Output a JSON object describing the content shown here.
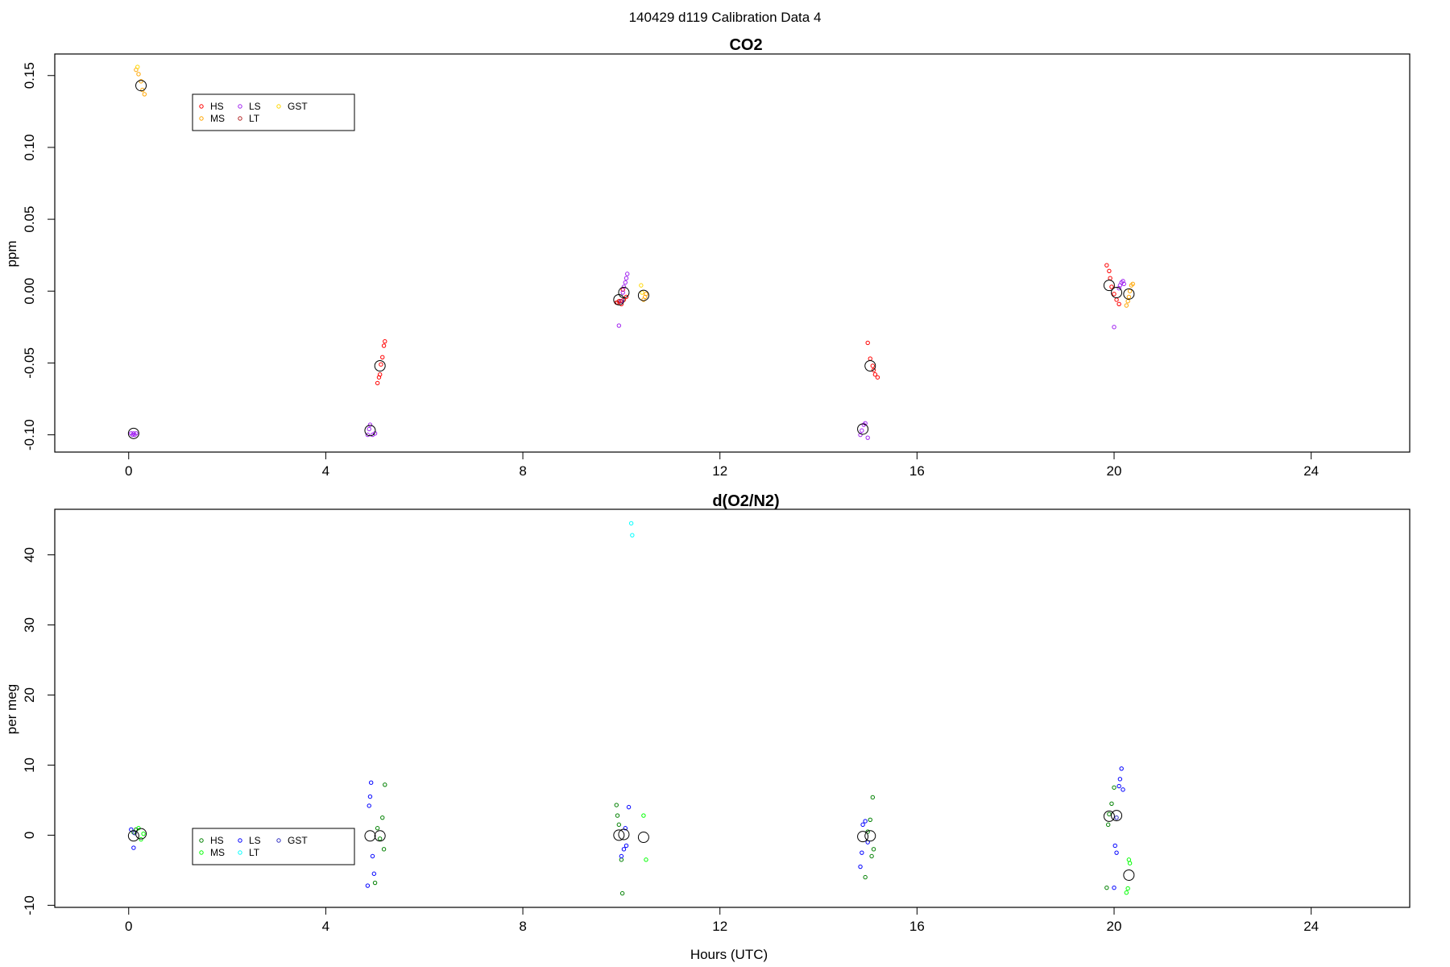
{
  "figure": {
    "title": "140429   d119   Calibration Data 4",
    "xlabel": "Hours (UTC)"
  },
  "chart_data": [
    {
      "type": "scatter",
      "title": "CO2",
      "ylabel": "ppm",
      "xlim": [
        -1.5,
        26
      ],
      "ylim": [
        -0.112,
        0.165
      ],
      "xticks": [
        0,
        4,
        8,
        12,
        16,
        20,
        24
      ],
      "yticks": [
        -0.1,
        -0.05,
        0.0,
        0.05,
        0.1,
        0.15
      ],
      "ytick_labels": [
        "-0.10",
        "-0.05",
        "0.00",
        "0.05",
        "0.10",
        "0.15"
      ],
      "legend": {
        "position": "top-left",
        "entries": [
          {
            "name": "HS",
            "color": "#ff0000"
          },
          {
            "name": "MS",
            "color": "#ffa500"
          },
          {
            "name": "LS",
            "color": "#a020f0"
          },
          {
            "name": "LT",
            "color": "#b22222"
          },
          {
            "name": "GST",
            "color": "#ffd700"
          }
        ]
      },
      "series": [
        {
          "name": "HS",
          "color": "#ff0000",
          "points": [
            [
              5.05,
              -0.064
            ],
            [
              5.1,
              -0.058
            ],
            [
              5.12,
              -0.051
            ],
            [
              5.15,
              -0.046
            ],
            [
              5.18,
              -0.038
            ],
            [
              5.2,
              -0.035
            ],
            [
              5.08,
              -0.06
            ],
            [
              9.9,
              -0.008
            ],
            [
              9.95,
              -0.007
            ],
            [
              10.0,
              -0.009
            ],
            [
              10.05,
              -0.006
            ],
            [
              10.1,
              -0.004
            ],
            [
              10.03,
              0.001
            ],
            [
              15.0,
              -0.036
            ],
            [
              15.05,
              -0.047
            ],
            [
              15.1,
              -0.052
            ],
            [
              15.15,
              -0.058
            ],
            [
              15.2,
              -0.06
            ],
            [
              15.12,
              -0.055
            ],
            [
              19.85,
              0.018
            ],
            [
              19.9,
              0.014
            ],
            [
              19.92,
              0.009
            ],
            [
              19.95,
              0.003
            ],
            [
              20.0,
              -0.002
            ],
            [
              20.05,
              -0.006
            ],
            [
              20.1,
              -0.009
            ]
          ]
        },
        {
          "name": "MS",
          "color": "#ffa500",
          "points": [
            [
              0.15,
              0.154
            ],
            [
              0.2,
              0.151
            ],
            [
              0.25,
              0.146
            ],
            [
              0.28,
              0.14
            ],
            [
              0.32,
              0.137
            ],
            [
              10.45,
              -0.006
            ],
            [
              10.48,
              -0.004
            ],
            [
              10.5,
              -0.002
            ],
            [
              20.25,
              -0.01
            ],
            [
              20.28,
              -0.007
            ],
            [
              20.3,
              -0.004
            ],
            [
              20.32,
              0.0
            ],
            [
              20.35,
              0.004
            ],
            [
              20.38,
              0.005
            ]
          ]
        },
        {
          "name": "LS",
          "color": "#a020f0",
          "points": [
            [
              0.05,
              -0.099
            ],
            [
              0.08,
              -0.1
            ],
            [
              0.1,
              -0.099
            ],
            [
              0.12,
              -0.1
            ],
            [
              0.15,
              -0.099
            ],
            [
              4.85,
              -0.1
            ],
            [
              4.88,
              -0.096
            ],
            [
              4.9,
              -0.093
            ],
            [
              4.95,
              -0.1
            ],
            [
              5.0,
              -0.099
            ],
            [
              9.95,
              -0.024
            ],
            [
              10.0,
              -0.007
            ],
            [
              10.03,
              -0.001
            ],
            [
              10.05,
              0.003
            ],
            [
              10.08,
              0.006
            ],
            [
              10.1,
              0.009
            ],
            [
              10.12,
              0.012
            ],
            [
              14.85,
              -0.1
            ],
            [
              14.88,
              -0.097
            ],
            [
              14.92,
              -0.093
            ],
            [
              14.95,
              -0.092
            ],
            [
              15.0,
              -0.102
            ],
            [
              20.0,
              -0.025
            ],
            [
              20.1,
              0.002
            ],
            [
              20.12,
              0.004
            ],
            [
              20.15,
              0.006
            ],
            [
              20.18,
              0.007
            ],
            [
              20.2,
              0.005
            ]
          ]
        },
        {
          "name": "LT",
          "color": "#b22222",
          "points": [
            [
              9.92,
              -0.008
            ],
            [
              9.98,
              -0.007
            ]
          ]
        },
        {
          "name": "GST",
          "color": "#ffd700",
          "points": [
            [
              0.18,
              0.156
            ],
            [
              10.4,
              0.004
            ],
            [
              10.42,
              -0.001
            ]
          ]
        }
      ],
      "means": [
        [
          0.1,
          -0.099
        ],
        [
          0.25,
          0.143
        ],
        [
          4.9,
          -0.097
        ],
        [
          5.1,
          -0.052
        ],
        [
          9.95,
          -0.006
        ],
        [
          10.05,
          -0.001
        ],
        [
          10.45,
          -0.003
        ],
        [
          14.9,
          -0.096
        ],
        [
          15.05,
          -0.052
        ],
        [
          19.9,
          0.004
        ],
        [
          20.05,
          -0.001
        ],
        [
          20.3,
          -0.002
        ]
      ]
    },
    {
      "type": "scatter",
      "title": "d(O2/N2)",
      "ylabel": "per meg",
      "xlim": [
        -1.5,
        26
      ],
      "ylim": [
        -10.3,
        46.5
      ],
      "xticks": [
        0,
        4,
        8,
        12,
        16,
        20,
        24
      ],
      "yticks": [
        -10,
        0,
        10,
        20,
        30,
        40
      ],
      "ytick_labels": [
        "-10",
        "0",
        "10",
        "20",
        "30",
        "40"
      ],
      "legend": {
        "position": "bottom-left",
        "entries": [
          {
            "name": "HS",
            "color": "#008000"
          },
          {
            "name": "MS",
            "color": "#00ff00"
          },
          {
            "name": "LS",
            "color": "#0000ff"
          },
          {
            "name": "LT",
            "color": "#00ffff"
          },
          {
            "name": "GST",
            "color": "#3030c0"
          }
        ]
      },
      "series": [
        {
          "name": "HS",
          "color": "#008000",
          "points": [
            [
              0.1,
              0.4
            ],
            [
              0.15,
              0.8
            ],
            [
              5.05,
              1.0
            ],
            [
              5.1,
              -0.5
            ],
            [
              5.15,
              2.5
            ],
            [
              5.2,
              7.2
            ],
            [
              5.18,
              -2.0
            ],
            [
              5.0,
              -6.8
            ],
            [
              9.9,
              4.3
            ],
            [
              9.92,
              2.8
            ],
            [
              9.95,
              1.5
            ],
            [
              10.0,
              -3.5
            ],
            [
              10.02,
              -8.3
            ],
            [
              14.95,
              -6.0
            ],
            [
              15.0,
              0.5
            ],
            [
              15.05,
              2.2
            ],
            [
              15.1,
              5.4
            ],
            [
              15.12,
              -2.0
            ],
            [
              15.08,
              -3.0
            ],
            [
              19.85,
              -7.5
            ],
            [
              19.88,
              1.5
            ],
            [
              19.9,
              3.0
            ],
            [
              19.95,
              4.5
            ],
            [
              20.0,
              6.8
            ]
          ]
        },
        {
          "name": "MS",
          "color": "#00ff00",
          "points": [
            [
              0.2,
              1.0
            ],
            [
              0.25,
              -0.6
            ],
            [
              0.3,
              0.2
            ],
            [
              10.45,
              2.8
            ],
            [
              10.5,
              -3.5
            ],
            [
              20.25,
              -8.2
            ],
            [
              20.28,
              -7.6
            ],
            [
              20.3,
              -3.5
            ],
            [
              20.32,
              -4.0
            ]
          ]
        },
        {
          "name": "LS",
          "color": "#0000ff",
          "points": [
            [
              0.05,
              0.8
            ],
            [
              0.1,
              -1.8
            ],
            [
              4.85,
              -7.2
            ],
            [
              4.88,
              4.2
            ],
            [
              4.9,
              5.5
            ],
            [
              4.92,
              7.5
            ],
            [
              4.95,
              -3.0
            ],
            [
              4.98,
              -5.5
            ],
            [
              10.0,
              -3.0
            ],
            [
              10.05,
              -2.0
            ],
            [
              10.08,
              1.0
            ],
            [
              10.1,
              -1.5
            ],
            [
              10.15,
              4.0
            ],
            [
              14.85,
              -4.5
            ],
            [
              14.88,
              -2.5
            ],
            [
              14.9,
              1.5
            ],
            [
              14.95,
              2.0
            ],
            [
              15.0,
              -1.0
            ],
            [
              20.0,
              -7.5
            ],
            [
              20.02,
              -1.5
            ],
            [
              20.05,
              -2.5
            ],
            [
              20.1,
              7.0
            ],
            [
              20.12,
              8.0
            ],
            [
              20.15,
              9.5
            ],
            [
              20.18,
              6.5
            ]
          ]
        },
        {
          "name": "LT",
          "color": "#00ffff",
          "points": [
            [
              10.2,
              44.5
            ],
            [
              10.22,
              42.8
            ]
          ]
        },
        {
          "name": "GST",
          "color": "#3030c0",
          "points": [
            [
              0.12,
              0.3
            ],
            [
              20.05,
              2.5
            ]
          ]
        }
      ],
      "means": [
        [
          0.1,
          -0.1
        ],
        [
          0.25,
          0.2
        ],
        [
          4.9,
          -0.1
        ],
        [
          5.1,
          -0.1
        ],
        [
          9.95,
          0.0
        ],
        [
          10.05,
          0.1
        ],
        [
          10.45,
          -0.3
        ],
        [
          14.9,
          -0.2
        ],
        [
          15.05,
          -0.1
        ],
        [
          19.9,
          2.7
        ],
        [
          20.05,
          2.8
        ],
        [
          20.3,
          -5.7
        ]
      ]
    }
  ]
}
